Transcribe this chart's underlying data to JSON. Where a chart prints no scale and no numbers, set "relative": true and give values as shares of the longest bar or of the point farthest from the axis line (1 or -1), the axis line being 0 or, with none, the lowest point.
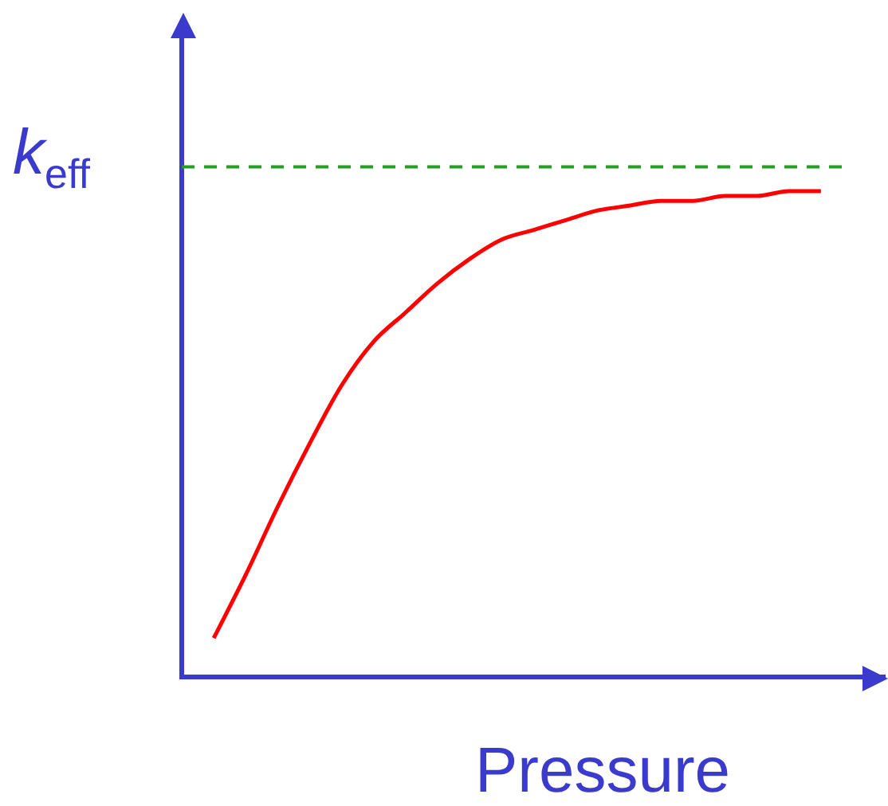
{
  "chart_data": {
    "type": "line",
    "relative": true,
    "xlabel": "Pressure",
    "ylabel": "k$_{eff}$",
    "categories": [
      null,
      null,
      null,
      null,
      null,
      null,
      null,
      null,
      null,
      null,
      null,
      null,
      null,
      null,
      null,
      null,
      null,
      null,
      null,
      null,
      null,
      null,
      null
    ],
    "series": [
      {
        "color": "#ff0000",
        "values": [
          null,
          0.08,
          0.21,
          0.35,
          0.48,
          0.6,
          0.69,
          0.75,
          0.81,
          0.86,
          0.9,
          0.92,
          0.94,
          0.96,
          0.97,
          0.98,
          0.98,
          0.99,
          0.99,
          1.0,
          1.0,
          null,
          null
        ]
      }
    ],
    "ref_lines": [
      {
        "axis": "y",
        "value": 1.05,
        "color": "#22a022",
        "line_style": "dashed"
      }
    ],
    "grid": false,
    "legend": false,
    "marker": "none",
    "line_style": "solid"
  }
}
